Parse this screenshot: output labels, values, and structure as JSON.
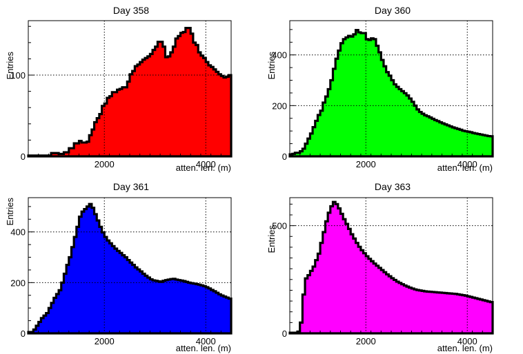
{
  "chart_data": [
    {
      "type": "histogram",
      "title": "Day 358",
      "xlabel": "atten. len. (m)",
      "ylabel": "Entries",
      "xlim": [
        500,
        4500
      ],
      "ylim": [
        0,
        167
      ],
      "xticks": [
        2000,
        4000
      ],
      "yticks": [
        0,
        100
      ],
      "grid": true,
      "fill_color": "#ff0000",
      "bin_start": 500,
      "bin_width": 50,
      "values": [
        1,
        1,
        1,
        1,
        1,
        1,
        1,
        1,
        1,
        4,
        4,
        4,
        3,
        3,
        5,
        5,
        10,
        10,
        16,
        16,
        19,
        17,
        17,
        18,
        26,
        33,
        42,
        47,
        52,
        62,
        65,
        72,
        74,
        79,
        79,
        82,
        83,
        85,
        85,
        92,
        101,
        105,
        111,
        113,
        116,
        119,
        121,
        123,
        126,
        131,
        135,
        141,
        141,
        135,
        122,
        123,
        128,
        135,
        145,
        148,
        152,
        153,
        158,
        158,
        151,
        140,
        137,
        128,
        124,
        121,
        116,
        112,
        110,
        107,
        104,
        101,
        99,
        97,
        98,
        100,
        96,
        95,
        94,
        96,
        92,
        88,
        89,
        88,
        86,
        84,
        79,
        80,
        79,
        77,
        75,
        73,
        72,
        69,
        67,
        65,
        65,
        64,
        65,
        67,
        63,
        64,
        70,
        65,
        69,
        66,
        68,
        66,
        61,
        62,
        62,
        65,
        55,
        58,
        57,
        51,
        52,
        52,
        52,
        47,
        44,
        48,
        41,
        36,
        36,
        32,
        32,
        32,
        32,
        32,
        32,
        32,
        32
      ]
    },
    {
      "type": "histogram",
      "title": "Day 360",
      "xlabel": "atten. len. (m)",
      "ylabel": "Entries",
      "xlim": [
        500,
        4500
      ],
      "ylim": [
        0,
        535
      ],
      "xticks": [
        2000,
        4000
      ],
      "yticks": [
        0,
        200,
        400
      ],
      "grid": true,
      "fill_color": "#00ff00",
      "bin_start": 500,
      "bin_width": 50,
      "values": [
        8,
        10,
        14,
        14,
        20,
        30,
        50,
        70,
        90,
        115,
        140,
        163,
        180,
        212,
        236,
        265,
        300,
        345,
        385,
        417,
        446,
        462,
        469,
        475,
        472,
        481,
        498,
        489,
        486,
        486,
        462,
        459,
        465,
        462,
        436,
        410,
        380,
        355,
        332,
        318,
        300,
        284,
        274,
        265,
        257,
        249,
        240,
        228,
        215,
        200,
        185,
        175,
        168,
        162,
        158,
        153,
        148,
        143,
        139,
        134,
        130,
        126,
        122,
        118,
        114,
        111,
        108,
        105,
        101,
        99,
        97,
        95,
        92,
        90,
        88,
        86,
        84,
        82,
        80,
        79,
        77,
        76,
        74,
        72,
        70,
        68,
        67,
        66,
        65,
        64,
        63,
        62,
        61,
        60,
        59,
        58,
        57,
        56,
        55,
        54,
        53,
        52,
        53,
        54,
        53,
        55,
        52,
        50,
        48,
        47,
        45
      ]
    },
    {
      "type": "histogram",
      "title": "Day 361",
      "xlabel": "atten. len. (m)",
      "ylabel": "Entries",
      "xlim": [
        500,
        4500
      ],
      "ylim": [
        0,
        535
      ],
      "xticks": [
        2000,
        4000
      ],
      "yticks": [
        0,
        200,
        400
      ],
      "grid": true,
      "fill_color": "#0000ff",
      "bin_start": 500,
      "bin_width": 50,
      "values": [
        5,
        5,
        15,
        30,
        45,
        60,
        70,
        80,
        100,
        120,
        140,
        155,
        170,
        200,
        235,
        270,
        300,
        340,
        380,
        420,
        460,
        480,
        490,
        500,
        510,
        495,
        470,
        445,
        420,
        398,
        380,
        366,
        355,
        344,
        334,
        325,
        317,
        308,
        300,
        289,
        279,
        270,
        260,
        252,
        244,
        235,
        227,
        220,
        213,
        209,
        207,
        205,
        203,
        207,
        210,
        212,
        214,
        215,
        212,
        210,
        208,
        206,
        203,
        200,
        198,
        196,
        194,
        192,
        189,
        186,
        182,
        177,
        171,
        166,
        160,
        154,
        149,
        145,
        141,
        137,
        134,
        131,
        128,
        125,
        122,
        119,
        116,
        113,
        110,
        107,
        104,
        101,
        98,
        96,
        94,
        92,
        89,
        87,
        85,
        83,
        82,
        81,
        80,
        79,
        78,
        77,
        76,
        75,
        74,
        73,
        72,
        71,
        70,
        69,
        68,
        67,
        66,
        65,
        64,
        63,
        62,
        61,
        60,
        59,
        58,
        58,
        57,
        57,
        56,
        56,
        55,
        55,
        55,
        55,
        54,
        54,
        54
      ]
    },
    {
      "type": "histogram",
      "title": "Day 363",
      "xlabel": "atten. len. (m)",
      "ylabel": "Entries",
      "xlim": [
        500,
        4500
      ],
      "ylim": [
        0,
        630
      ],
      "xticks": [
        2000,
        4000
      ],
      "yticks": [
        0,
        500
      ],
      "grid": true,
      "fill_color": "#ff00ff",
      "bin_start": 500,
      "bin_width": 50,
      "values": [
        3,
        3,
        3,
        8,
        50,
        180,
        255,
        270,
        290,
        310,
        340,
        370,
        420,
        470,
        520,
        560,
        590,
        610,
        600,
        580,
        555,
        530,
        508,
        485,
        460,
        440,
        420,
        402,
        386,
        372,
        358,
        346,
        335,
        324,
        314,
        304,
        294,
        284,
        274,
        265,
        256,
        248,
        240,
        234,
        228,
        222,
        217,
        212,
        208,
        204,
        201,
        199,
        197,
        195,
        194,
        193,
        192,
        191,
        190,
        189,
        188,
        187,
        186,
        185,
        184,
        183,
        181,
        179,
        177,
        175,
        172,
        169,
        166,
        163,
        160,
        157,
        154,
        151,
        148,
        145,
        142,
        139,
        136,
        133,
        130,
        127,
        124,
        121,
        118,
        116,
        114,
        112,
        110,
        108,
        106,
        104,
        102,
        100,
        98,
        97,
        96,
        95,
        94,
        93,
        92,
        91,
        90,
        89,
        88,
        87,
        86,
        85,
        84,
        83,
        82,
        81,
        80,
        79,
        78,
        77,
        76,
        75,
        74,
        73,
        72,
        71,
        70,
        69,
        68,
        67,
        66,
        65,
        64,
        63,
        63,
        62,
        62,
        62,
        62
      ]
    }
  ]
}
